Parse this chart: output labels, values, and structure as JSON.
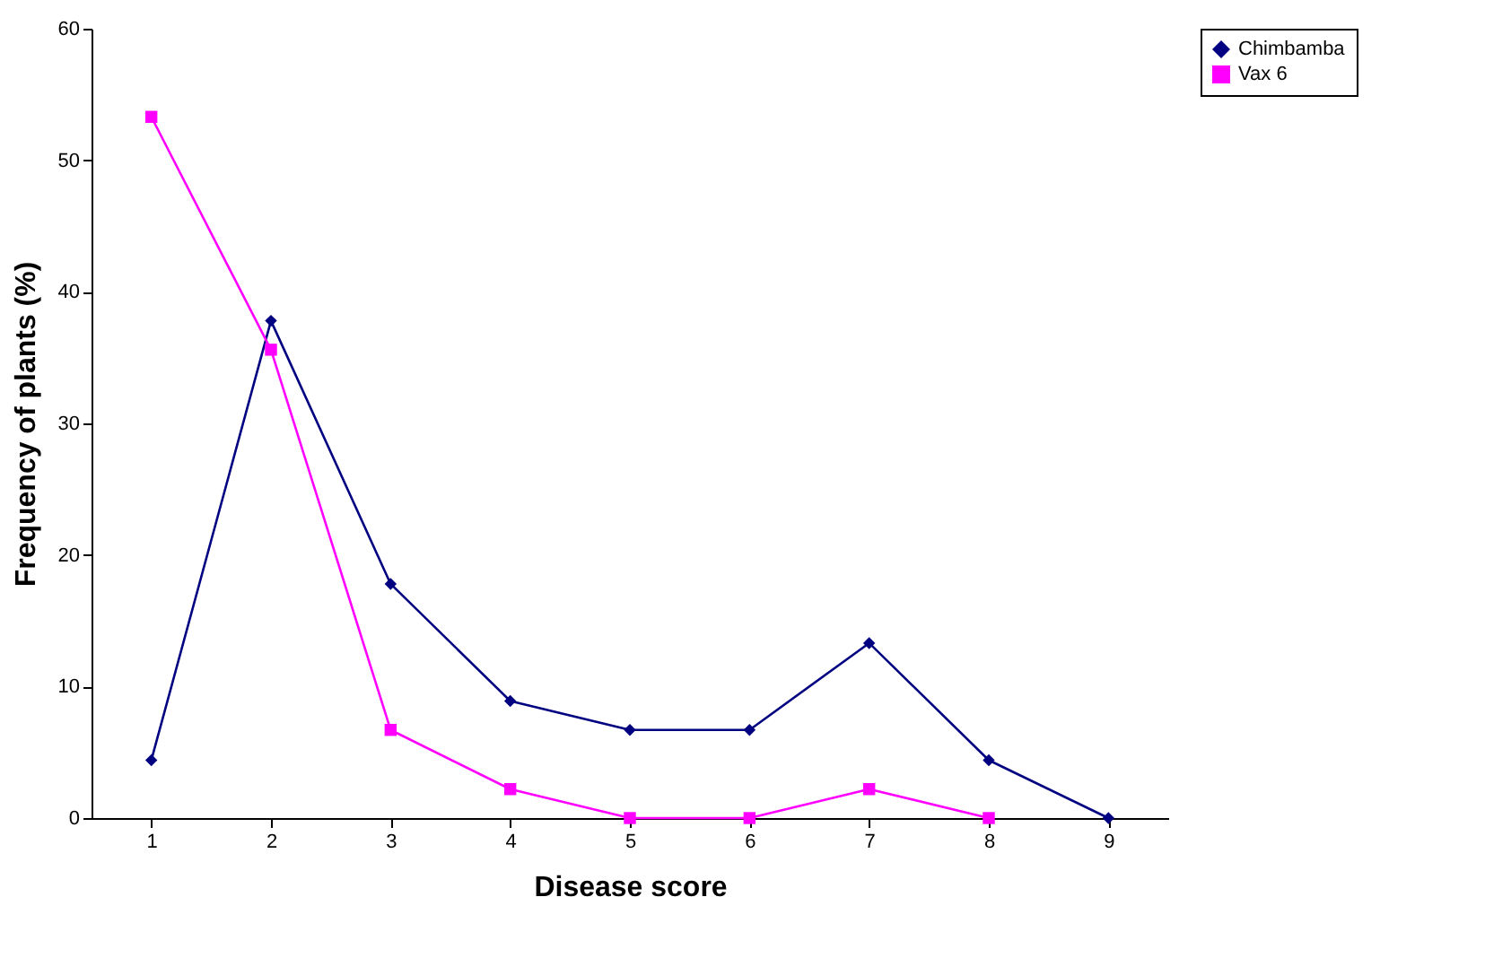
{
  "chart_data": {
    "type": "line",
    "xlabel": "Disease score",
    "ylabel": "Frequency of plants (%)",
    "categories": [
      "1",
      "2",
      "3",
      "4",
      "5",
      "6",
      "7",
      "8",
      "9"
    ],
    "series": [
      {
        "name": "Chimbamba",
        "color": "#000080",
        "marker": "diamond",
        "values": [
          4.4,
          37.8,
          17.8,
          8.9,
          6.7,
          6.7,
          13.3,
          4.4,
          0
        ]
      },
      {
        "name": "Vax 6",
        "color": "#ff00ff",
        "marker": "square",
        "values": [
          53.3,
          35.6,
          6.7,
          2.2,
          0,
          0,
          2.2,
          0,
          null
        ]
      }
    ],
    "ylim": [
      0,
      60
    ],
    "yticks": [
      0,
      10,
      20,
      30,
      40,
      50,
      60
    ],
    "grid": false,
    "legend": "right",
    "line_style": "solid"
  }
}
